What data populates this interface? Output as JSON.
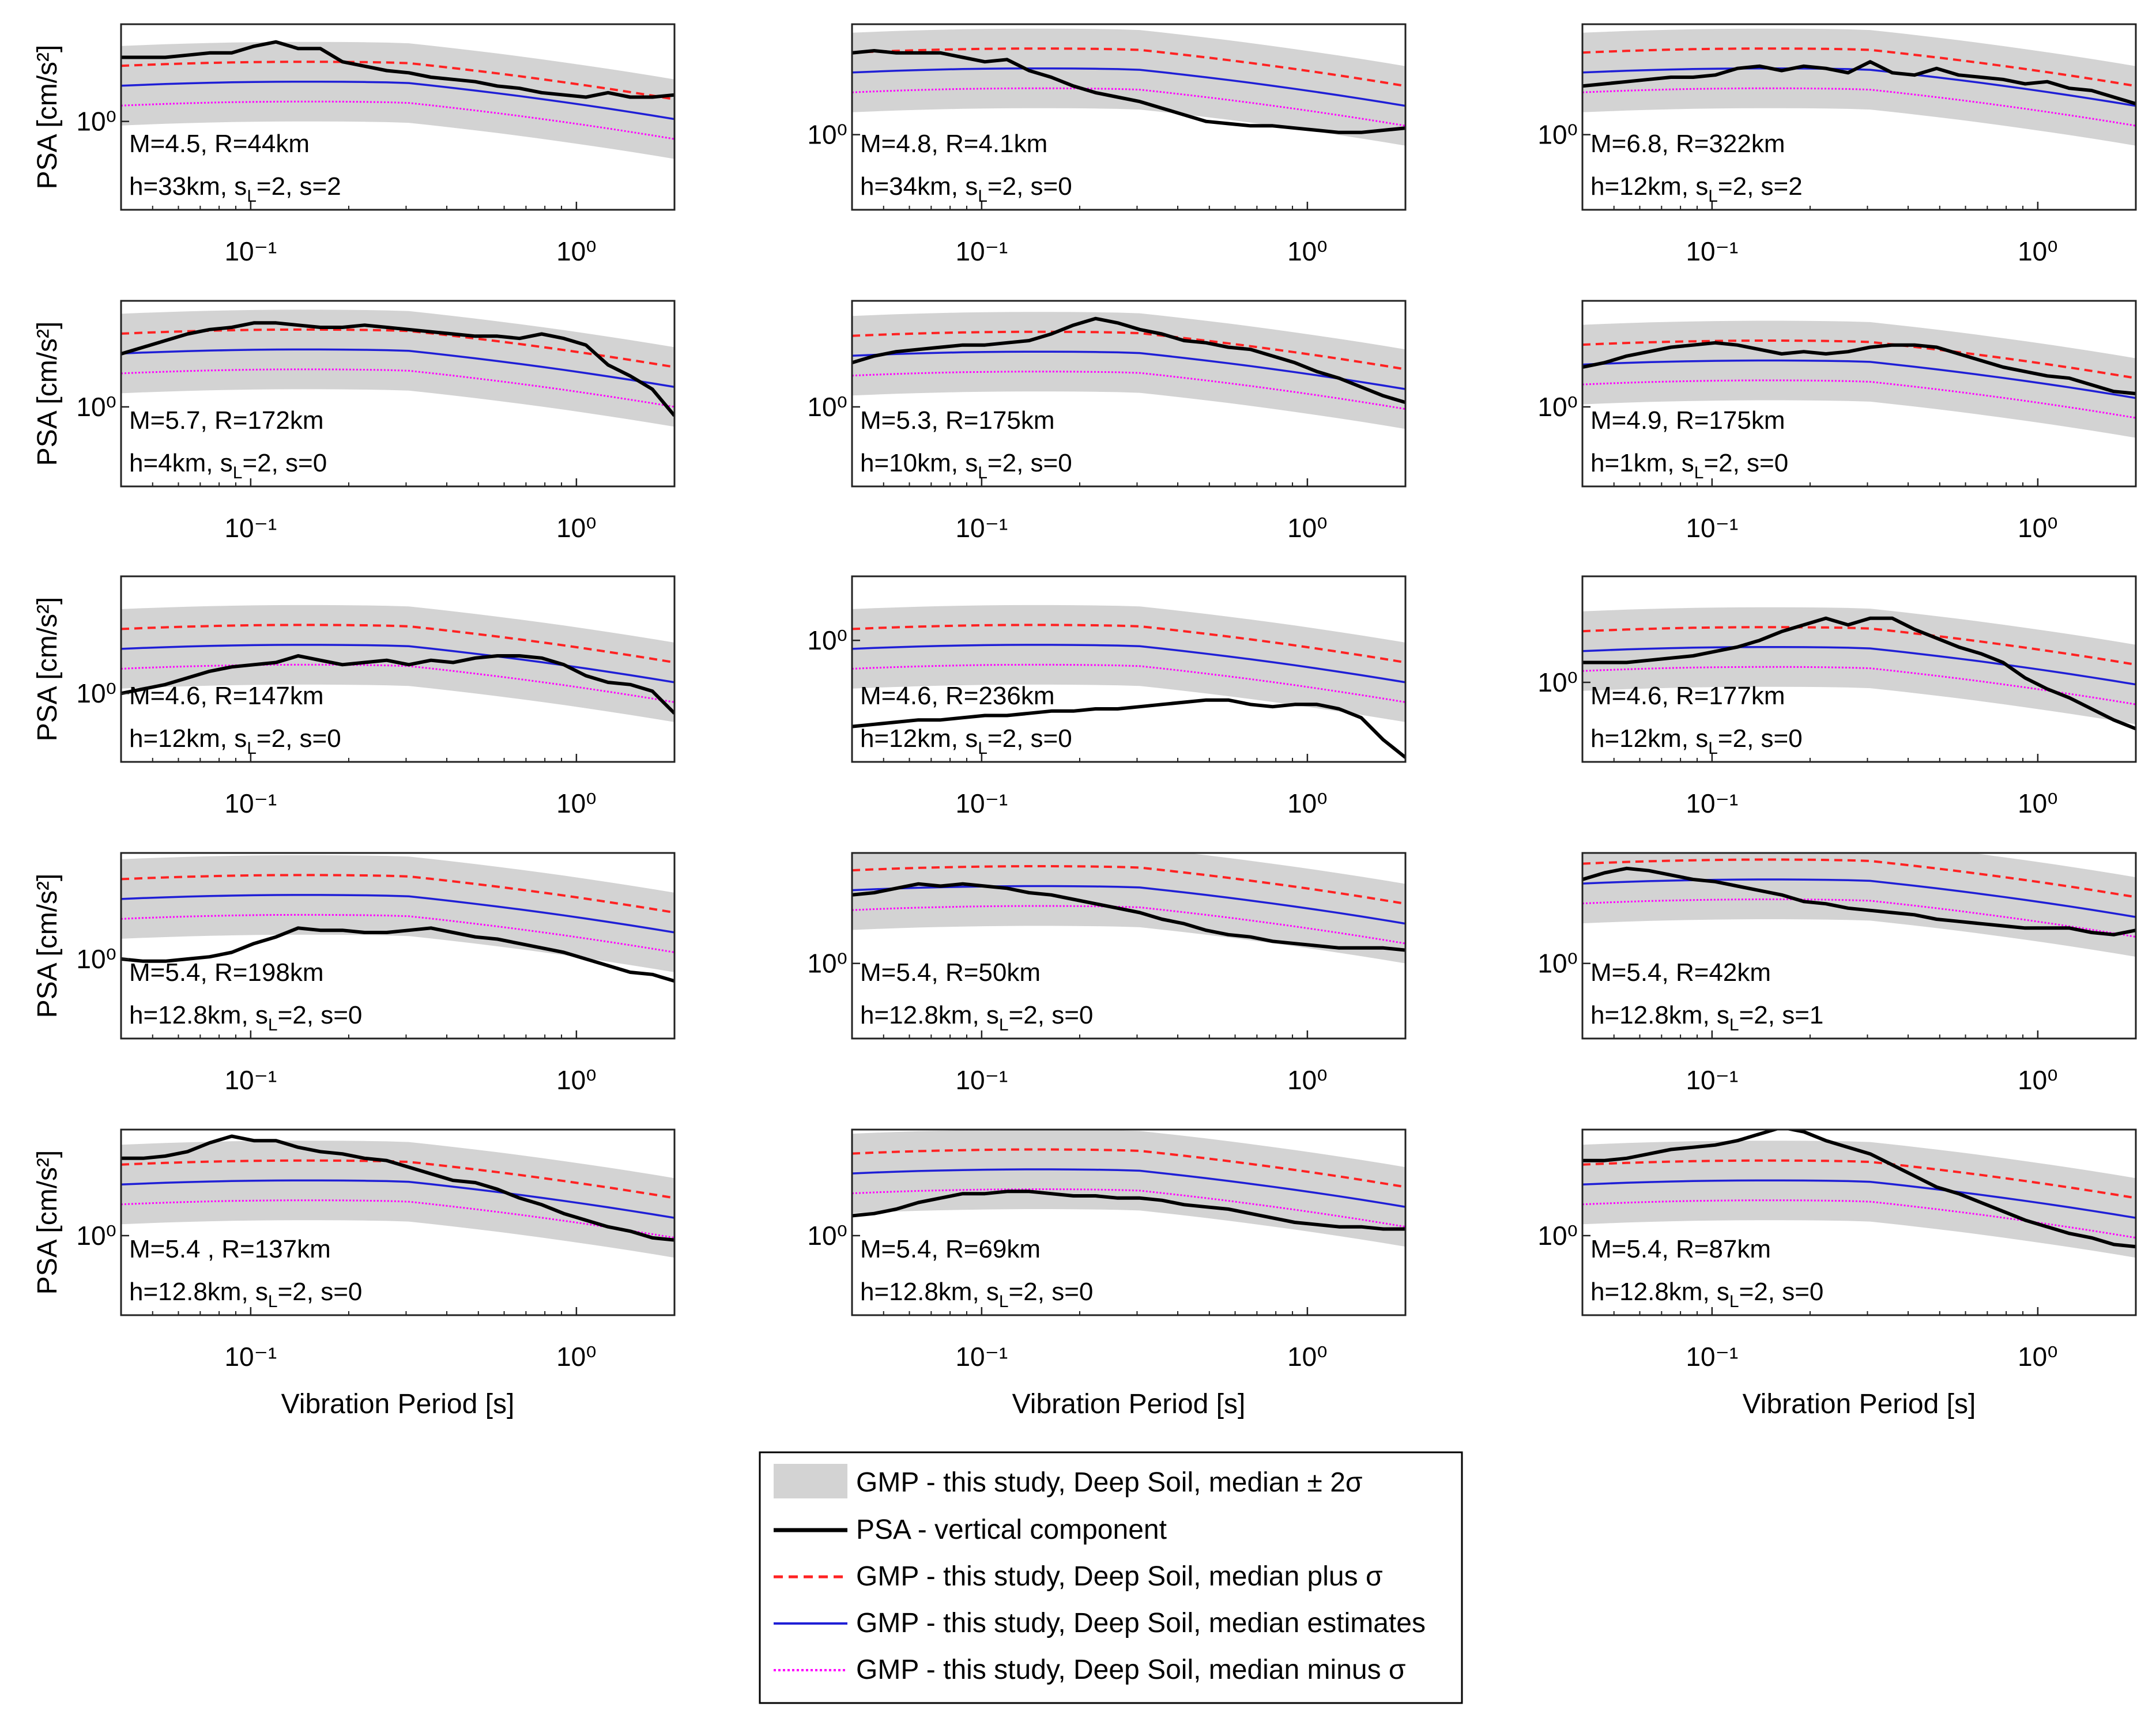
{
  "figure": {
    "y_axis_label": "PSA [cm/s²]",
    "x_axis_label": "Vibration Period [s]",
    "x_tick_labels": [
      "10⁻¹",
      "10⁰"
    ],
    "y_tick_label": "10⁰",
    "legend": [
      {
        "key": "band",
        "label": "GMP - this study, Deep Soil, median ± 2σ"
      },
      {
        "key": "psa",
        "label": "PSA - vertical component"
      },
      {
        "key": "plus",
        "label": "GMP - this study, Deep Soil, median plus σ"
      },
      {
        "key": "median",
        "label": "GMP - this study, Deep Soil, median estimates"
      },
      {
        "key": "minus",
        "label": "GMP - this study, Deep Soil, median minus σ"
      }
    ],
    "colors": {
      "band": "#d3d3d3",
      "psa": "#000000",
      "plus": "#ff2222",
      "median": "#1f1fd6",
      "minus": "#ff00ff"
    }
  },
  "chart_data": [
    {
      "type": "line",
      "title": "",
      "annotation_line1": "M=4.5, R=44km",
      "annotation_line2_prefix": "h=33km, s",
      "annotation_line2_sub": "L",
      "annotation_line2_suffix": "=2, s=2",
      "xlim": [
        0.04,
        2.0
      ],
      "median_level": 1.4,
      "y0_level": 0.5,
      "psa_y": [
        1.95,
        1.95,
        1.95,
        2.0,
        2.05,
        2.05,
        2.2,
        2.3,
        2.15,
        2.15,
        1.85,
        1.75,
        1.65,
        1.6,
        1.5,
        1.45,
        1.4,
        1.3,
        1.25,
        1.15,
        1.1,
        1.05,
        1.15,
        1.05,
        1.05,
        1.1
      ]
    },
    {
      "type": "line",
      "title": "",
      "annotation_line1": "M=4.8, R=4.1km",
      "annotation_line2_prefix": "h=34km, s",
      "annotation_line2_sub": "L",
      "annotation_line2_suffix": "=2, s=0",
      "xlim": [
        0.04,
        2.0
      ],
      "median_level": 1.7,
      "y0_level": 0.2,
      "psa_y": [
        2.05,
        2.1,
        2.05,
        2.05,
        2.05,
        1.95,
        1.85,
        1.9,
        1.65,
        1.5,
        1.3,
        1.15,
        1.05,
        0.95,
        0.8,
        0.65,
        0.5,
        0.45,
        0.4,
        0.4,
        0.35,
        0.3,
        0.25,
        0.25,
        0.3,
        0.35
      ]
    },
    {
      "type": "line",
      "title": "",
      "annotation_line1": "M=6.8, R=322km",
      "annotation_line2_prefix": "h=12km, s",
      "annotation_line2_sub": "L",
      "annotation_line2_suffix": "=2, s=2",
      "xlim": [
        0.04,
        2.0
      ],
      "median_level": 1.7,
      "y0_level": 0.2,
      "psa_y": [
        1.3,
        1.35,
        1.4,
        1.45,
        1.5,
        1.5,
        1.55,
        1.7,
        1.75,
        1.65,
        1.75,
        1.7,
        1.6,
        1.85,
        1.6,
        1.55,
        1.7,
        1.55,
        1.5,
        1.45,
        1.35,
        1.4,
        1.25,
        1.2,
        1.05,
        0.9
      ]
    },
    {
      "type": "line",
      "title": "",
      "annotation_line1": "M=5.7, R=172km",
      "annotation_line2_prefix": "h=4km, s",
      "annotation_line2_sub": "L",
      "annotation_line2_suffix": "=2, s=0",
      "xlim": [
        0.04,
        2.0
      ],
      "median_level": 1.6,
      "y0_level": 0.3,
      "psa_y": [
        1.5,
        1.65,
        1.8,
        1.95,
        2.05,
        2.1,
        2.2,
        2.2,
        2.15,
        2.1,
        2.1,
        2.15,
        2.1,
        2.05,
        2.0,
        1.95,
        1.9,
        1.9,
        1.85,
        1.95,
        1.85,
        1.7,
        1.25,
        1.0,
        0.7,
        0.1
      ]
    },
    {
      "type": "line",
      "title": "",
      "annotation_line1": "M=5.3, R=175km",
      "annotation_line2_prefix": "h=10km, s",
      "annotation_line2_sub": "L",
      "annotation_line2_suffix": "=2, s=0",
      "xlim": [
        0.04,
        2.0
      ],
      "median_level": 1.55,
      "y0_level": 0.3,
      "psa_y": [
        1.3,
        1.45,
        1.55,
        1.6,
        1.65,
        1.7,
        1.7,
        1.75,
        1.8,
        1.95,
        2.15,
        2.3,
        2.2,
        2.05,
        1.95,
        1.8,
        1.75,
        1.65,
        1.6,
        1.45,
        1.3,
        1.1,
        0.95,
        0.75,
        0.55,
        0.4
      ]
    },
    {
      "type": "line",
      "title": "",
      "annotation_line1": "M=4.9, R=175km",
      "annotation_line2_prefix": "h=1km, s",
      "annotation_line2_sub": "L",
      "annotation_line2_suffix": "=2, s=0",
      "xlim": [
        0.04,
        2.0
      ],
      "median_level": 1.35,
      "y0_level": 0.3,
      "psa_y": [
        1.2,
        1.3,
        1.45,
        1.55,
        1.65,
        1.7,
        1.75,
        1.7,
        1.6,
        1.5,
        1.55,
        1.5,
        1.55,
        1.65,
        1.7,
        1.7,
        1.65,
        1.5,
        1.35,
        1.2,
        1.1,
        1.0,
        0.95,
        0.8,
        0.65,
        0.6
      ]
    },
    {
      "type": "line",
      "title": "",
      "annotation_line1": "M=4.6, R=147km",
      "annotation_line2_prefix": "h=12km, s",
      "annotation_line2_sub": "L",
      "annotation_line2_suffix": "=2, s=0",
      "xlim": [
        0.04,
        2.0
      ],
      "median_level": 1.15,
      "y0_level": 0.05,
      "psa_y": [
        0.05,
        0.15,
        0.25,
        0.4,
        0.55,
        0.65,
        0.7,
        0.75,
        0.9,
        0.8,
        0.7,
        0.75,
        0.8,
        0.7,
        0.8,
        0.75,
        0.85,
        0.9,
        0.9,
        0.85,
        0.7,
        0.45,
        0.3,
        0.25,
        0.1,
        -0.4
      ]
    },
    {
      "type": "line",
      "title": "",
      "annotation_line1": "M=4.6, R=236km",
      "annotation_line2_prefix": "h=12km, s",
      "annotation_line2_sub": "L",
      "annotation_line2_suffix": "=2, s=0",
      "xlim": [
        0.04,
        2.0
      ],
      "median_level": 1.15,
      "y0_level": 1.25,
      "psa_y": [
        -0.7,
        -0.65,
        -0.6,
        -0.55,
        -0.55,
        -0.5,
        -0.45,
        -0.45,
        -0.4,
        -0.35,
        -0.35,
        -0.3,
        -0.3,
        -0.25,
        -0.2,
        -0.15,
        -0.1,
        -0.1,
        -0.2,
        -0.25,
        -0.2,
        -0.2,
        -0.3,
        -0.5,
        -1.0,
        -1.4
      ]
    },
    {
      "type": "line",
      "title": "",
      "annotation_line1": "M=4.6, R=177km",
      "annotation_line2_prefix": "h=12km, s",
      "annotation_line2_sub": "L",
      "annotation_line2_suffix": "=2, s=0",
      "xlim": [
        0.04,
        2.0
      ],
      "median_level": 1.1,
      "y0_level": 0.3,
      "psa_y": [
        0.75,
        0.75,
        0.75,
        0.8,
        0.85,
        0.9,
        1.0,
        1.1,
        1.25,
        1.45,
        1.6,
        1.75,
        1.6,
        1.75,
        1.75,
        1.5,
        1.3,
        1.1,
        0.95,
        0.75,
        0.4,
        0.15,
        -0.05,
        -0.3,
        -0.55,
        -0.75
      ]
    },
    {
      "type": "line",
      "title": "",
      "annotation_line1": "M=5.4, R=198km",
      "annotation_line2_prefix": "h=12.8km, s",
      "annotation_line2_sub": "L",
      "annotation_line2_suffix": "=2, s=0",
      "xlim": [
        0.04,
        2.0
      ],
      "median_level": 1.75,
      "y0_level": 0.3,
      "psa_y": [
        0.3,
        0.25,
        0.25,
        0.3,
        0.35,
        0.45,
        0.65,
        0.8,
        1.0,
        0.95,
        0.95,
        0.9,
        0.9,
        0.95,
        1.0,
        0.9,
        0.8,
        0.75,
        0.65,
        0.55,
        0.45,
        0.3,
        0.15,
        0.0,
        -0.05,
        -0.2
      ]
    },
    {
      "type": "line",
      "title": "",
      "annotation_line1": "M=5.4, R=50km",
      "annotation_line2_prefix": "h=12.8km, s",
      "annotation_line2_sub": "L",
      "annotation_line2_suffix": "=2, s=0",
      "xlim": [
        0.04,
        2.0
      ],
      "median_level": 1.95,
      "y0_level": 0.2,
      "psa_y": [
        1.75,
        1.8,
        1.9,
        2.0,
        1.95,
        2.0,
        1.95,
        1.9,
        1.8,
        1.75,
        1.65,
        1.55,
        1.45,
        1.35,
        1.2,
        1.1,
        0.95,
        0.85,
        0.8,
        0.7,
        0.65,
        0.6,
        0.55,
        0.55,
        0.55,
        0.5
      ]
    },
    {
      "type": "line",
      "title": "",
      "annotation_line1": "M=5.4, R=42km",
      "annotation_line2_prefix": "h=12.8km, s",
      "annotation_line2_sub": "L",
      "annotation_line2_suffix": "=2, s=1",
      "xlim": [
        0.04,
        2.0
      ],
      "median_level": 2.1,
      "y0_level": 0.2,
      "psa_y": [
        2.1,
        2.25,
        2.35,
        2.3,
        2.2,
        2.1,
        2.05,
        1.95,
        1.85,
        1.75,
        1.6,
        1.55,
        1.45,
        1.4,
        1.35,
        1.3,
        1.2,
        1.15,
        1.1,
        1.05,
        1.0,
        1.0,
        1.0,
        0.9,
        0.85,
        0.95
      ]
    },
    {
      "type": "line",
      "title": "",
      "annotation_line1": "M=5.4 , R=137km",
      "annotation_line2_prefix": "h=12.8km, s",
      "annotation_line2_sub": "L",
      "annotation_line2_suffix": "=2, s=0",
      "xlim": [
        0.04,
        2.0
      ],
      "median_level": 1.55,
      "y0_level": 0.3,
      "psa_y": [
        2.05,
        2.05,
        2.1,
        2.2,
        2.4,
        2.55,
        2.45,
        2.45,
        2.3,
        2.2,
        2.15,
        2.05,
        2.0,
        1.85,
        1.7,
        1.55,
        1.5,
        1.35,
        1.15,
        1.0,
        0.8,
        0.65,
        0.5,
        0.4,
        0.25,
        0.2
      ]
    },
    {
      "type": "line",
      "title": "",
      "annotation_line1": "M=5.4, R=69km",
      "annotation_line2_prefix": "h=12.8km, s",
      "annotation_line2_sub": "L",
      "annotation_line2_suffix": "=2, s=0",
      "xlim": [
        0.04,
        2.0
      ],
      "median_level": 1.8,
      "y0_level": 0.3,
      "psa_y": [
        0.75,
        0.8,
        0.9,
        1.05,
        1.15,
        1.25,
        1.25,
        1.3,
        1.3,
        1.25,
        1.2,
        1.2,
        1.15,
        1.15,
        1.1,
        1.0,
        0.95,
        0.9,
        0.8,
        0.7,
        0.6,
        0.55,
        0.5,
        0.5,
        0.45,
        0.45
      ]
    },
    {
      "type": "line",
      "title": "",
      "annotation_line1": "M=5.4, R=87km",
      "annotation_line2_prefix": "h=12.8km, s",
      "annotation_line2_sub": "L",
      "annotation_line2_suffix": "=2, s=0",
      "xlim": [
        0.04,
        2.0
      ],
      "median_level": 1.55,
      "y0_level": 0.3,
      "psa_y": [
        2.0,
        2.0,
        2.05,
        2.15,
        2.25,
        2.3,
        2.35,
        2.45,
        2.6,
        2.75,
        2.65,
        2.45,
        2.3,
        2.15,
        1.9,
        1.65,
        1.4,
        1.25,
        1.05,
        0.85,
        0.65,
        0.5,
        0.35,
        0.25,
        0.1,
        0.05
      ]
    }
  ]
}
